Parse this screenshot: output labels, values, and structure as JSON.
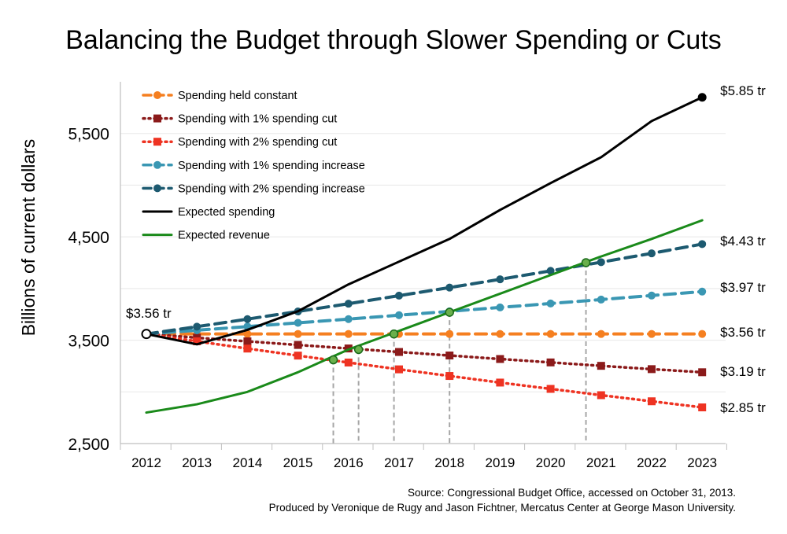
{
  "chart_data": {
    "type": "line",
    "title": "Balancing the Budget through Slower Spending or Cuts",
    "ylabel": "Billions of current dollars",
    "xlabel": "",
    "ylim": [
      2500,
      6000
    ],
    "yticks": [
      "2,500",
      "3,500",
      "4,500",
      "5,500"
    ],
    "x": [
      "2012",
      "2013",
      "2014",
      "2015",
      "2016",
      "2017",
      "2018",
      "2019",
      "2020",
      "2021",
      "2022",
      "2023"
    ],
    "legend_position": "top-left",
    "grid": "horizontal",
    "series": [
      {
        "name": "Spending held constant",
        "color": "#f57f20",
        "style": "dashed",
        "marker": "circle",
        "values": [
          3560,
          3560,
          3560,
          3560,
          3560,
          3560,
          3560,
          3560,
          3560,
          3560,
          3560,
          3560
        ]
      },
      {
        "name": "Spending with 1% spending cut",
        "color": "#8b1a1a",
        "style": "dotted",
        "marker": "square",
        "values": [
          3560,
          3524,
          3489,
          3454,
          3420,
          3386,
          3352,
          3318,
          3285,
          3252,
          3220,
          3190
        ]
      },
      {
        "name": "Spending with 2% spending cut",
        "color": "#ee3322",
        "style": "dotted",
        "marker": "square",
        "values": [
          3560,
          3489,
          3419,
          3351,
          3284,
          3218,
          3154,
          3090,
          3029,
          2968,
          2909,
          2850
        ]
      },
      {
        "name": "Spending with 1% spending increase",
        "color": "#3a97b3",
        "style": "dashed",
        "marker": "circle",
        "values": [
          3560,
          3596,
          3632,
          3668,
          3704,
          3742,
          3779,
          3817,
          3855,
          3893,
          3932,
          3970
        ]
      },
      {
        "name": "Spending with 2% spending increase",
        "color": "#1d5a70",
        "style": "dashed",
        "marker": "circle",
        "values": [
          3560,
          3631,
          3704,
          3778,
          3853,
          3931,
          4009,
          4089,
          4171,
          4255,
          4340,
          4430
        ]
      },
      {
        "name": "Expected spending",
        "color": "#000000",
        "style": "solid",
        "marker": "none",
        "values": [
          3560,
          3460,
          3600,
          3780,
          4040,
          4260,
          4480,
          4760,
          5020,
          5270,
          5620,
          5850
        ]
      },
      {
        "name": "Expected revenue",
        "color": "#1a8a1a",
        "style": "solid",
        "marker": "none",
        "values": [
          2800,
          2880,
          3000,
          3190,
          3410,
          3590,
          3770,
          3950,
          4130,
          4310,
          4480,
          4660
        ]
      }
    ],
    "end_labels": [
      "$5.85 tr",
      "$4.43 tr",
      "$3.97 tr",
      "$3.56 tr",
      "$3.19 tr",
      "$2.85 tr"
    ],
    "start_label": "$3.56 tr",
    "intersections": [
      {
        "x": 2015.7,
        "y": 3310
      },
      {
        "x": 2016.2,
        "y": 3410
      },
      {
        "x": 2016.9,
        "y": 3560
      },
      {
        "x": 2018.0,
        "y": 3770
      },
      {
        "x": 2020.7,
        "y": 4250
      }
    ]
  },
  "source_lines": [
    "Source: Congressional Budget Office, accessed on October 31, 2013.",
    "Produced by Veronique de Rugy and Jason Fichtner, Mercatus Center at George Mason University."
  ]
}
